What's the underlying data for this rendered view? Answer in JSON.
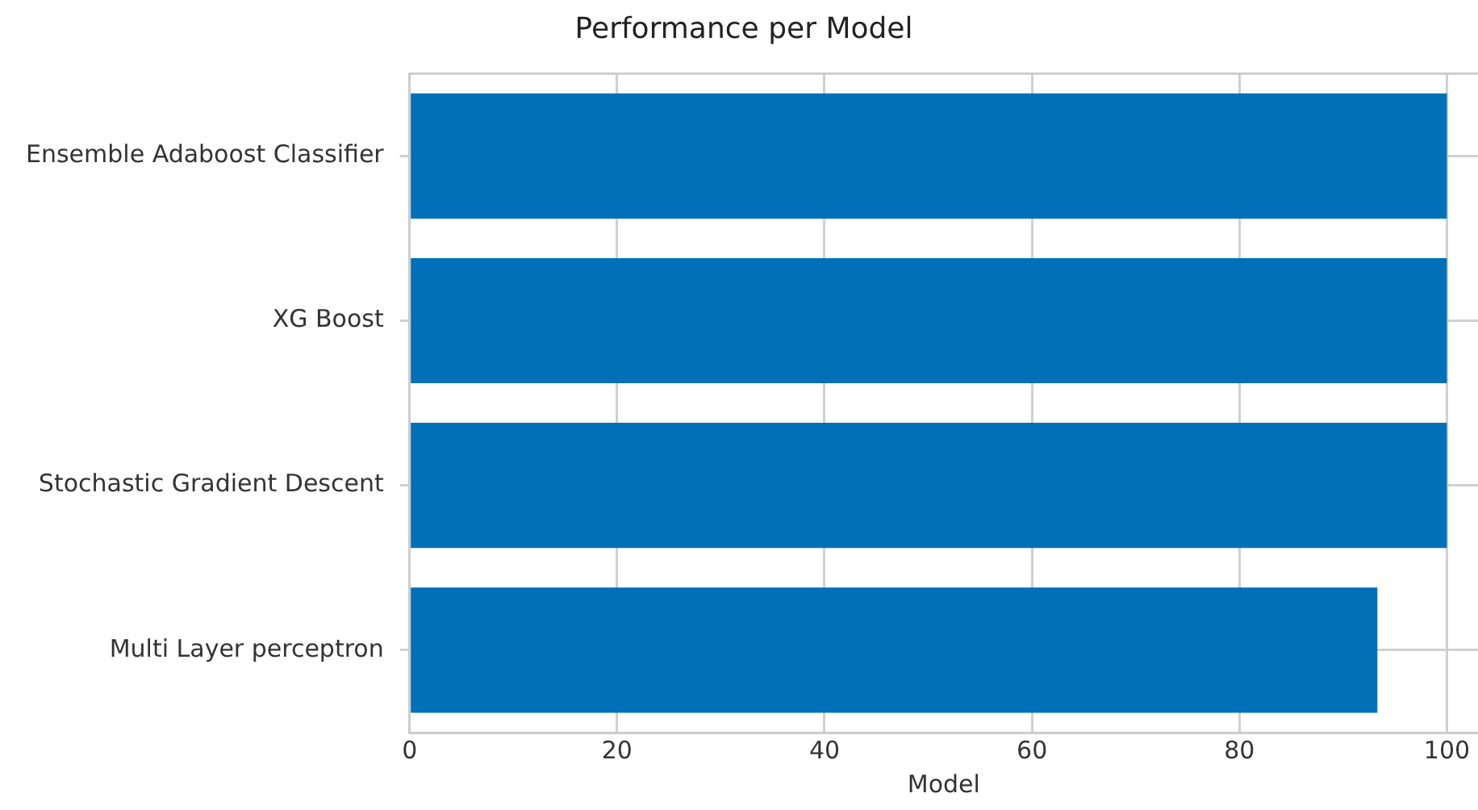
{
  "chart_data": {
    "type": "bar",
    "orientation": "horizontal",
    "title": "Performance per Model",
    "xlabel": "Model",
    "categories": [
      "Ensemble Adaboost Classifier",
      "XG Boost",
      "Stochastic Gradient Descent",
      "Multi Layer perceptron"
    ],
    "values": [
      100,
      100,
      100,
      93.3
    ],
    "color": "#0070b8",
    "xlim": [
      0,
      103
    ],
    "xticks": [
      0,
      20,
      40,
      60,
      80,
      100
    ],
    "grid": true
  }
}
